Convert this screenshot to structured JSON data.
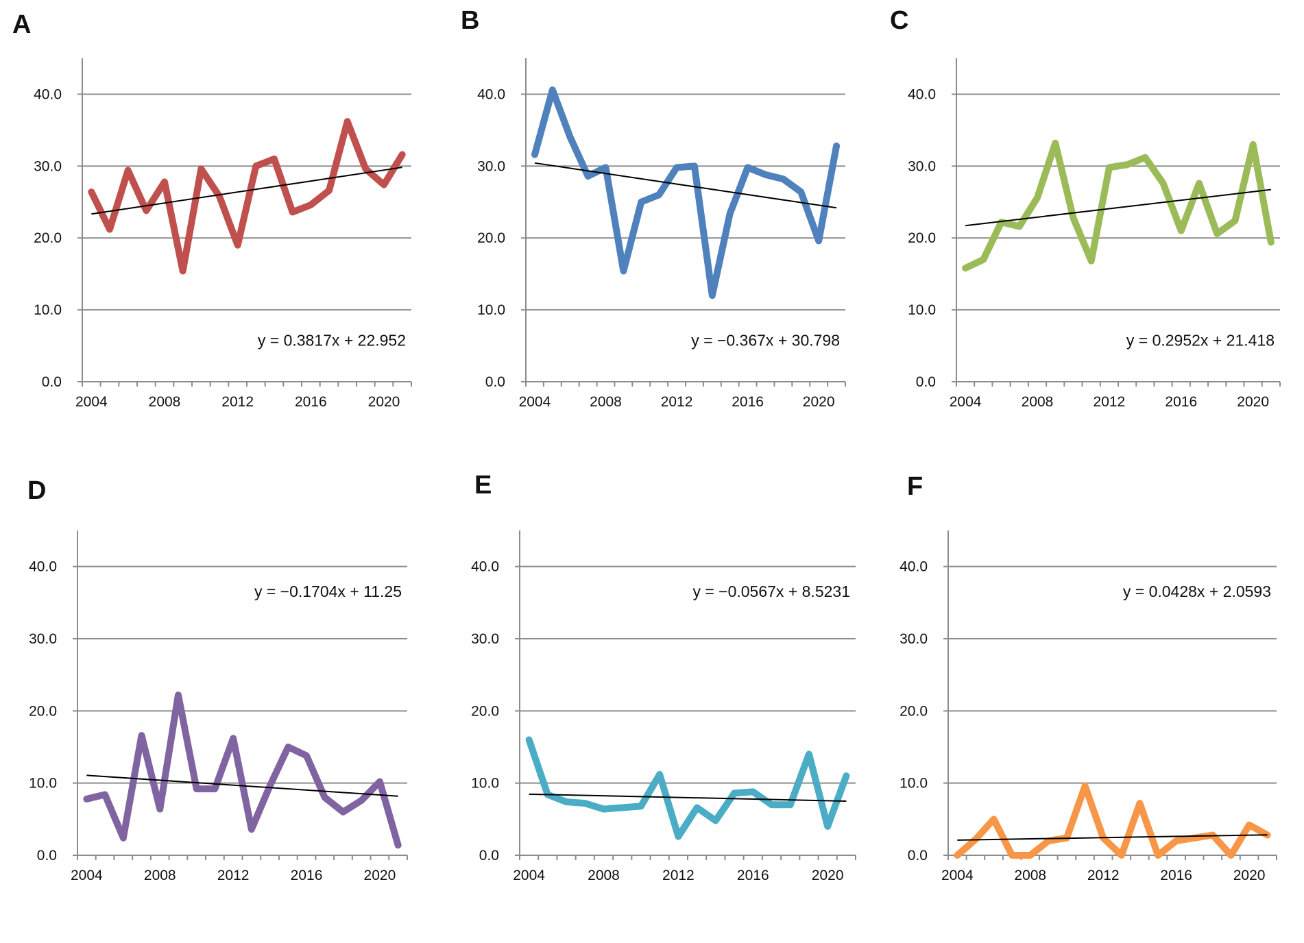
{
  "chart_data": [
    {
      "panel": "A",
      "type": "line",
      "color": "#c0504d",
      "x": [
        2004,
        2005,
        2006,
        2007,
        2008,
        2009,
        2010,
        2011,
        2012,
        2013,
        2014,
        2015,
        2016,
        2017,
        2018,
        2019,
        2020,
        2021
      ],
      "values": [
        26.4,
        21.2,
        29.4,
        23.8,
        27.8,
        15.4,
        29.6,
        25.8,
        19.0,
        30.0,
        31.0,
        23.6,
        24.6,
        26.6,
        36.2,
        29.6,
        27.4,
        31.6
      ],
      "trend": {
        "slope": 0.3817,
        "intercept": 22.952,
        "equation": "y = 0.3817x + 22.952"
      },
      "ylim": [
        0,
        45
      ],
      "yticks": [
        "0.0",
        "10.0",
        "20.0",
        "30.0",
        "40.0"
      ],
      "yticks_values": [
        0,
        10,
        20,
        30,
        40
      ],
      "xticks": [
        "2004",
        "2008",
        "2012",
        "2016",
        "2020"
      ],
      "xticks_values": [
        2004,
        2008,
        2012,
        2016,
        2020
      ],
      "xlim": [
        2003.5,
        2021.5
      ],
      "equation_position": "lower-right"
    },
    {
      "panel": "B",
      "type": "line",
      "color": "#4f81bd",
      "x": [
        2004,
        2005,
        2006,
        2007,
        2008,
        2009,
        2010,
        2011,
        2012,
        2013,
        2014,
        2015,
        2016,
        2017,
        2018,
        2019,
        2020,
        2021
      ],
      "values": [
        31.6,
        40.6,
        34.0,
        28.6,
        29.8,
        15.4,
        25.0,
        26.0,
        29.8,
        30.0,
        12.0,
        23.4,
        29.8,
        28.8,
        28.2,
        26.4,
        19.6,
        32.8
      ],
      "trend": {
        "slope": -0.367,
        "intercept": 30.798,
        "equation": "y = −0.367x + 30.798"
      },
      "ylim": [
        0,
        45
      ],
      "yticks": [
        "0.0",
        "10.0",
        "20.0",
        "30.0",
        "40.0"
      ],
      "yticks_values": [
        0,
        10,
        20,
        30,
        40
      ],
      "xticks": [
        "2004",
        "2008",
        "2012",
        "2016",
        "2020"
      ],
      "xticks_values": [
        2004,
        2008,
        2012,
        2016,
        2020
      ],
      "xlim": [
        2003.5,
        2021.5
      ],
      "equation_position": "lower-right"
    },
    {
      "panel": "C",
      "type": "line",
      "color": "#9bbb59",
      "x": [
        2004,
        2005,
        2006,
        2007,
        2008,
        2009,
        2010,
        2011,
        2012,
        2013,
        2014,
        2015,
        2016,
        2017,
        2018,
        2019,
        2020,
        2021
      ],
      "values": [
        15.8,
        17.0,
        22.2,
        21.6,
        25.6,
        33.2,
        22.8,
        16.8,
        29.8,
        30.2,
        31.2,
        27.6,
        21.0,
        27.6,
        20.6,
        22.4,
        33.0,
        19.4
      ],
      "trend": {
        "slope": 0.2952,
        "intercept": 21.418,
        "equation": "y = 0.2952x + 21.418"
      },
      "ylim": [
        0,
        45
      ],
      "yticks": [
        "0.0",
        "10.0",
        "20.0",
        "30.0",
        "40.0"
      ],
      "yticks_values": [
        0,
        10,
        20,
        30,
        40
      ],
      "xticks": [
        "2004",
        "2008",
        "2012",
        "2016",
        "2020"
      ],
      "xticks_values": [
        2004,
        2008,
        2012,
        2016,
        2020
      ],
      "xlim": [
        2003.5,
        2021.5
      ],
      "equation_position": "lower-right"
    },
    {
      "panel": "D",
      "type": "line",
      "color": "#8064a2",
      "x": [
        2004,
        2005,
        2006,
        2007,
        2008,
        2009,
        2010,
        2011,
        2012,
        2013,
        2014,
        2015,
        2016,
        2017,
        2018,
        2019,
        2020,
        2021
      ],
      "values": [
        7.8,
        8.4,
        2.4,
        16.6,
        6.4,
        22.2,
        9.2,
        9.2,
        16.2,
        3.6,
        9.6,
        15.0,
        13.8,
        8.0,
        6.0,
        7.6,
        10.2,
        1.4
      ],
      "trend": {
        "slope": -0.1704,
        "intercept": 11.25,
        "equation": "y = −0.1704x + 11.25"
      },
      "ylim": [
        0,
        45
      ],
      "yticks": [
        "0.0",
        "10.0",
        "20.0",
        "30.0",
        "40.0"
      ],
      "yticks_values": [
        0,
        10,
        20,
        30,
        40
      ],
      "xticks": [
        "2004",
        "2008",
        "2012",
        "2016",
        "2020"
      ],
      "xticks_values": [
        2004,
        2008,
        2012,
        2016,
        2020
      ],
      "xlim": [
        2003.5,
        2021.5
      ],
      "equation_position": "upper-right"
    },
    {
      "panel": "E",
      "type": "line",
      "color": "#4bacc6",
      "x": [
        2004,
        2005,
        2006,
        2007,
        2008,
        2009,
        2010,
        2011,
        2012,
        2013,
        2014,
        2015,
        2016,
        2017,
        2018,
        2019,
        2020,
        2021
      ],
      "values": [
        16.0,
        8.4,
        7.4,
        7.2,
        6.4,
        6.6,
        6.8,
        11.2,
        2.6,
        6.6,
        4.8,
        8.6,
        8.8,
        7.0,
        7.0,
        14.0,
        4.0,
        11.0
      ],
      "trend": {
        "slope": -0.0567,
        "intercept": 8.5231,
        "equation": "y = −0.0567x + 8.5231"
      },
      "ylim": [
        0,
        45
      ],
      "yticks": [
        "0.0",
        "10.0",
        "20.0",
        "30.0",
        "40.0"
      ],
      "yticks_values": [
        0,
        10,
        20,
        30,
        40
      ],
      "xticks": [
        "2004",
        "2008",
        "2012",
        "2016",
        "2020"
      ],
      "xticks_values": [
        2004,
        2008,
        2012,
        2016,
        2020
      ],
      "xlim": [
        2003.5,
        2021.5
      ],
      "equation_position": "upper-right"
    },
    {
      "panel": "F",
      "type": "line",
      "color": "#f79646",
      "x": [
        2004,
        2005,
        2006,
        2007,
        2008,
        2009,
        2010,
        2011,
        2012,
        2013,
        2014,
        2015,
        2016,
        2017,
        2018,
        2019,
        2020,
        2021
      ],
      "values": [
        0.0,
        2.2,
        5.0,
        0.0,
        0.0,
        2.0,
        2.4,
        9.6,
        2.4,
        0.0,
        7.2,
        0.0,
        2.0,
        2.4,
        2.8,
        0.0,
        4.2,
        2.8
      ],
      "trend": {
        "slope": 0.0428,
        "intercept": 2.0593,
        "equation": "y = 0.0428x + 2.0593"
      },
      "ylim": [
        0,
        45
      ],
      "yticks": [
        "0.0",
        "10.0",
        "20.0",
        "30.0",
        "40.0"
      ],
      "yticks_values": [
        0,
        10,
        20,
        30,
        40
      ],
      "xticks": [
        "2004",
        "2008",
        "2012",
        "2016",
        "2020"
      ],
      "xticks_values": [
        2004,
        2008,
        2012,
        2016,
        2020
      ],
      "xlim": [
        2003.5,
        2021.5
      ],
      "equation_position": "upper-right"
    }
  ]
}
